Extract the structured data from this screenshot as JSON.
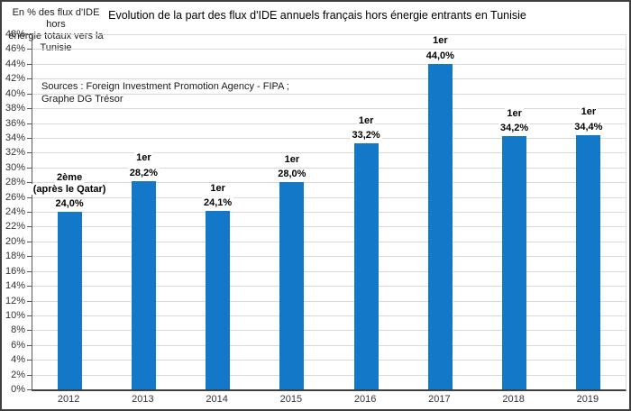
{
  "chart_data": {
    "type": "bar",
    "title": "Evolution de la part des flux d'IDE annuels français hors énergie entrants en Tunisie",
    "y_axis_note_lines": [
      "En % des flux d'IDE hors",
      "énergie totaux vers la",
      "Tunisie"
    ],
    "source_note_lines": [
      "Sources : Foreign Investment Promotion Agency - FIPA ;",
      "Graphe DG Trésor"
    ],
    "categories": [
      "2012",
      "2013",
      "2014",
      "2015",
      "2016",
      "2017",
      "2018",
      "2019"
    ],
    "values": [
      24.0,
      28.2,
      24.1,
      28.0,
      33.2,
      44.0,
      34.2,
      34.4
    ],
    "value_labels": [
      "24,0%",
      "28,2%",
      "24,1%",
      "28,0%",
      "33,2%",
      "44,0%",
      "34,2%",
      "34,4%"
    ],
    "rank_labels": [
      [
        "2ème",
        "(après le Qatar)"
      ],
      [
        "1er"
      ],
      [
        "1er"
      ],
      [
        "1er"
      ],
      [
        "1er"
      ],
      [
        "1er"
      ],
      [
        "1er"
      ],
      [
        "1er"
      ]
    ],
    "xlabel": "",
    "ylabel": "",
    "ylim": [
      0,
      48
    ],
    "y_tick_step": 2,
    "y_tick_suffix": "%",
    "grid": true,
    "legend": false
  },
  "colors": {
    "bar": "#1478c8",
    "gridline": "#d9d9d9",
    "axis_line": "#595959",
    "bottom_axis_line": "#404040",
    "outer_border": "#3f3f3f",
    "text": "#1a1a1a",
    "tick_label": "#333333",
    "label_background": "#ffffff"
  }
}
